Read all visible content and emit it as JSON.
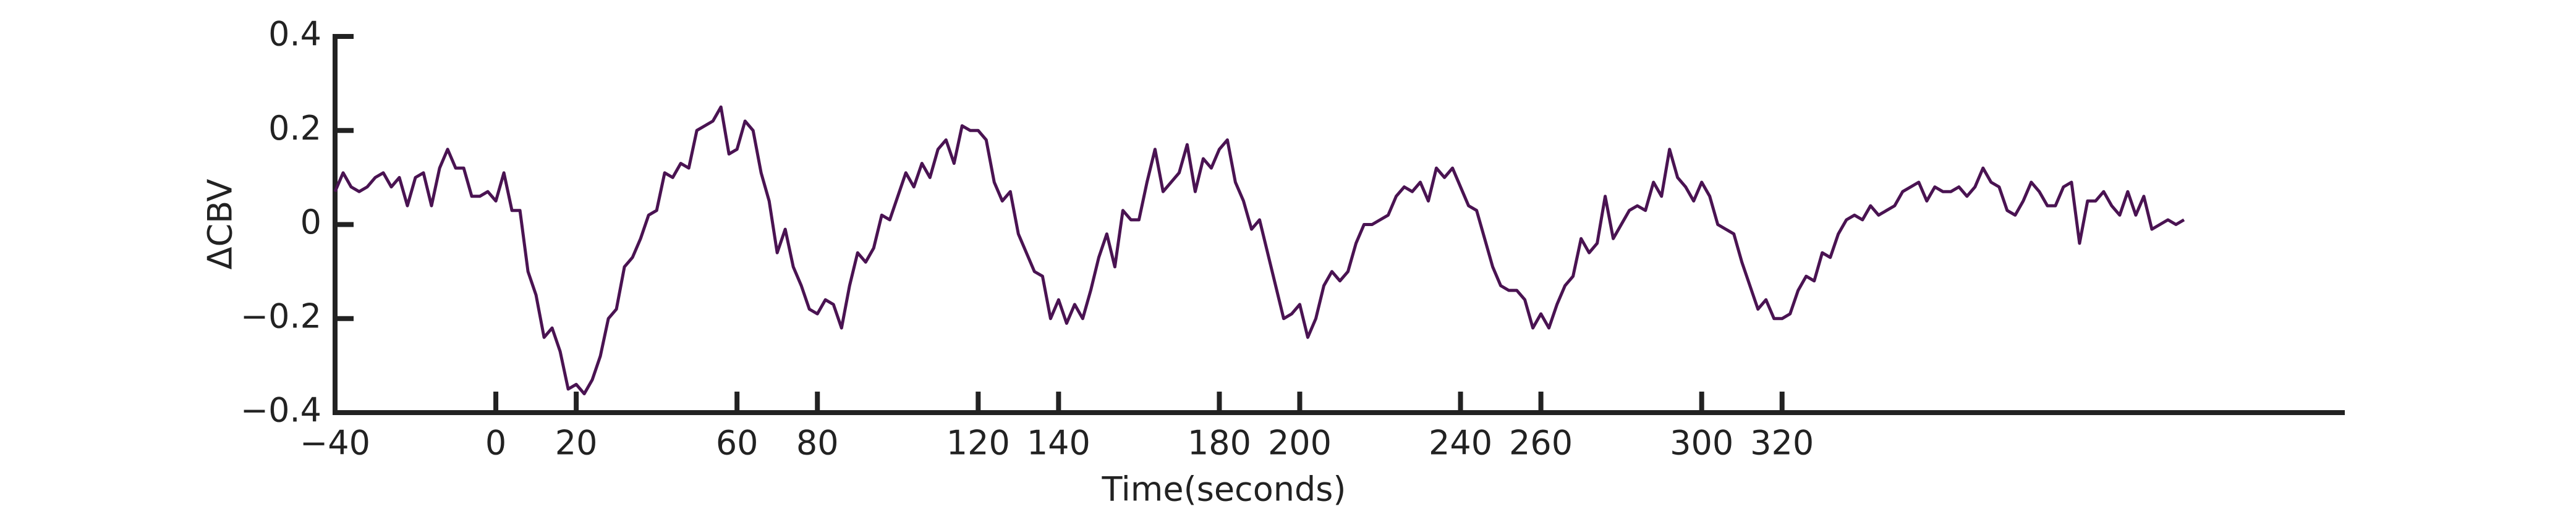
{
  "chart_data": {
    "type": "line",
    "x_label": "Time(seconds)",
    "y_label": "ΔCBV",
    "xlim": [
      -40,
      460
    ],
    "ylim": [
      -0.4,
      0.4
    ],
    "xticks": [
      {
        "value": -40,
        "label": "−40"
      },
      0,
      20,
      60,
      80,
      120,
      140,
      180,
      200,
      240,
      260,
      300,
      320
    ],
    "yticks": [
      {
        "value": -0.4,
        "label": "−0.4"
      },
      {
        "value": -0.2,
        "label": "−0.2"
      },
      0,
      0.2,
      0.4
    ],
    "x": [
      -40,
      -38,
      -36,
      -34,
      -32,
      -30,
      -28,
      -26,
      -24,
      -22,
      -20,
      -18,
      -16,
      -14,
      -12,
      -10,
      -8,
      -6,
      -4,
      -2,
      0,
      2,
      4,
      6,
      8,
      10,
      12,
      14,
      16,
      18,
      20,
      22,
      24,
      26,
      28,
      30,
      32,
      34,
      36,
      38,
      40,
      42,
      44,
      46,
      48,
      50,
      52,
      54,
      56,
      58,
      60,
      62,
      64,
      66,
      68,
      70,
      72,
      74,
      76,
      78,
      80,
      82,
      84,
      86,
      88,
      90,
      92,
      94,
      96,
      98,
      100,
      102,
      104,
      106,
      108,
      110,
      112,
      114,
      116,
      118,
      120,
      122,
      124,
      126,
      128,
      130,
      132,
      134,
      136,
      138,
      140,
      142,
      144,
      146,
      148,
      150,
      152,
      154,
      156,
      158,
      160,
      162,
      164,
      166,
      168,
      170,
      172,
      174,
      176,
      178,
      180,
      182,
      184,
      186,
      188,
      190,
      192,
      194,
      196,
      198,
      200,
      202,
      204,
      206,
      208,
      210,
      212,
      214,
      216,
      218,
      220,
      222,
      224,
      226,
      228,
      230,
      232,
      234,
      236,
      238,
      240,
      242,
      244,
      246,
      248,
      250,
      252,
      254,
      256,
      258,
      260,
      262,
      264,
      266,
      268,
      270,
      272,
      274,
      276,
      278,
      280,
      282,
      284,
      286,
      288,
      290,
      292,
      294,
      296,
      298,
      300,
      302,
      304,
      306,
      308,
      310,
      312,
      314,
      316,
      318,
      320,
      322,
      324,
      326,
      328,
      330,
      332,
      334,
      336,
      338,
      340,
      342,
      344,
      346,
      348,
      350,
      352,
      354,
      356,
      358,
      360,
      362,
      364,
      366,
      368,
      370,
      372,
      374,
      376,
      378,
      380,
      382,
      384,
      386,
      388,
      390,
      392,
      394,
      396,
      398,
      400,
      402,
      404,
      406,
      408,
      410,
      412,
      414,
      416,
      418,
      420
    ],
    "series": [
      {
        "color": "#4a1352",
        "values": [
          0.07,
          0.11,
          0.08,
          0.07,
          0.08,
          0.1,
          0.11,
          0.08,
          0.1,
          0.04,
          0.1,
          0.11,
          0.04,
          0.12,
          0.16,
          0.12,
          0.12,
          0.06,
          0.06,
          0.07,
          0.05,
          0.11,
          0.03,
          0.03,
          -0.1,
          -0.15,
          -0.24,
          -0.22,
          -0.27,
          -0.35,
          -0.34,
          -0.36,
          -0.33,
          -0.28,
          -0.2,
          -0.18,
          -0.09,
          -0.07,
          -0.03,
          0.02,
          0.03,
          0.11,
          0.1,
          0.13,
          0.12,
          0.2,
          0.21,
          0.22,
          0.25,
          0.15,
          0.16,
          0.22,
          0.2,
          0.11,
          0.05,
          -0.06,
          -0.01,
          -0.09,
          -0.13,
          -0.18,
          -0.19,
          -0.16,
          -0.17,
          -0.22,
          -0.13,
          -0.06,
          -0.08,
          -0.05,
          0.02,
          0.01,
          0.06,
          0.11,
          0.08,
          0.13,
          0.1,
          0.16,
          0.18,
          0.13,
          0.21,
          0.2,
          0.2,
          0.18,
          0.09,
          0.05,
          0.07,
          -0.02,
          -0.06,
          -0.1,
          -0.11,
          -0.2,
          -0.16,
          -0.21,
          -0.17,
          -0.2,
          -0.14,
          -0.07,
          -0.02,
          -0.09,
          0.03,
          0.01,
          0.01,
          0.09,
          0.16,
          0.07,
          0.09,
          0.11,
          0.17,
          0.07,
          0.14,
          0.12,
          0.16,
          0.18,
          0.09,
          0.05,
          -0.01,
          0.01,
          -0.06,
          -0.13,
          -0.2,
          -0.19,
          -0.17,
          -0.24,
          -0.2,
          -0.13,
          -0.1,
          -0.12,
          -0.1,
          -0.04,
          0.0,
          0.0,
          0.01,
          0.02,
          0.06,
          0.08,
          0.07,
          0.09,
          0.05,
          0.12,
          0.1,
          0.12,
          0.08,
          0.04,
          0.03,
          -0.03,
          -0.09,
          -0.13,
          -0.14,
          -0.14,
          -0.16,
          -0.22,
          -0.19,
          -0.22,
          -0.17,
          -0.13,
          -0.11,
          -0.03,
          -0.06,
          -0.04,
          0.06,
          -0.03,
          0.0,
          0.03,
          0.04,
          0.03,
          0.09,
          0.06,
          0.16,
          0.1,
          0.08,
          0.05,
          0.09,
          0.06,
          0.0,
          -0.01,
          -0.02,
          -0.08,
          -0.13,
          -0.18,
          -0.16,
          -0.2,
          -0.2,
          -0.19,
          -0.14,
          -0.11,
          -0.12,
          -0.06,
          -0.07,
          -0.02,
          0.01,
          0.02,
          0.01,
          0.04,
          0.02,
          0.03,
          0.04,
          0.07,
          0.08,
          0.09,
          0.05,
          0.08,
          0.07,
          0.07,
          0.08,
          0.06,
          0.08,
          0.12,
          0.09,
          0.08,
          0.03,
          0.02,
          0.05,
          0.09,
          0.07,
          0.04,
          0.04,
          0.08,
          0.09,
          -0.04,
          0.05,
          0.05,
          0.07,
          0.04,
          0.02,
          0.07,
          0.02,
          0.06,
          -0.01,
          0.0,
          0.01,
          0.0,
          0.01
        ]
      }
    ],
    "axis_color": "#222222"
  }
}
